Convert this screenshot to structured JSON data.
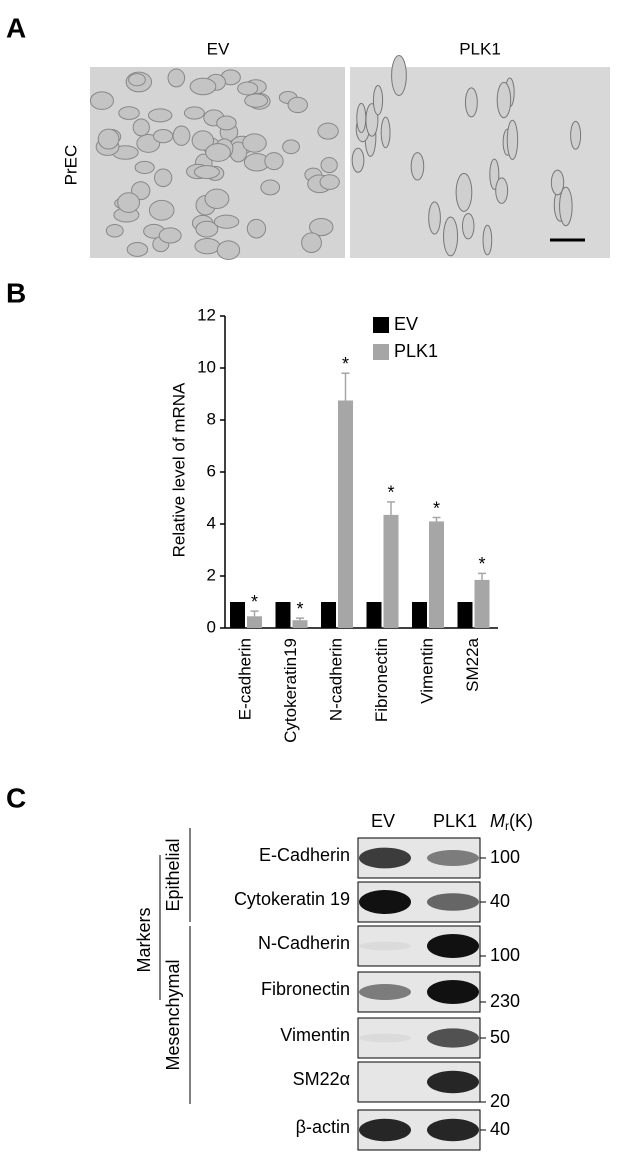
{
  "panels": [
    "A",
    "B",
    "C"
  ],
  "panel_a": {
    "columns": [
      "EV",
      "PLK1"
    ],
    "row_label": "PrEC"
  },
  "chart_data": {
    "type": "bar",
    "categories": [
      "E-cadherin",
      "Cytokeratin19",
      "N-cadherin",
      "Fibronectin",
      "Vimentin",
      "SM22a"
    ],
    "series": [
      {
        "name": "EV",
        "color": "#000000",
        "values": [
          1,
          1,
          1,
          1,
          1,
          1
        ]
      },
      {
        "name": "PLK1",
        "color": "#a6a6a6",
        "values": [
          0.45,
          0.3,
          8.75,
          4.35,
          4.1,
          1.85
        ],
        "errors": [
          0.2,
          0.08,
          1.05,
          0.5,
          0.15,
          0.25
        ],
        "annotations": [
          "*",
          "*",
          "*",
          "*",
          "*",
          "*"
        ]
      }
    ],
    "y_label": "Relative level of mRNA",
    "ylim": [
      0,
      12
    ],
    "yticks": [
      0,
      2,
      4,
      6,
      8,
      10,
      12
    ],
    "legend": "top-right",
    "grid": false
  },
  "panel_c": {
    "columns": [
      "EV",
      "PLK1"
    ],
    "mr_label": "M",
    "mr_sub": "r",
    "mr_unit": "(K)",
    "group_label": "Markers",
    "subgroups": [
      "Epithelial",
      "Mesenchymal"
    ],
    "rows": [
      {
        "name": "E-Cadherin",
        "mw": 100
      },
      {
        "name": "Cytokeratin 19",
        "mw": 40
      },
      {
        "name": "N-Cadherin",
        "mw": 100
      },
      {
        "name": "Fibronectin",
        "mw": 230
      },
      {
        "name": "Vimentin",
        "mw": 50
      },
      {
        "name": "SM22α",
        "mw": 20
      },
      {
        "name": "β-actin",
        "mw": 40
      }
    ]
  }
}
